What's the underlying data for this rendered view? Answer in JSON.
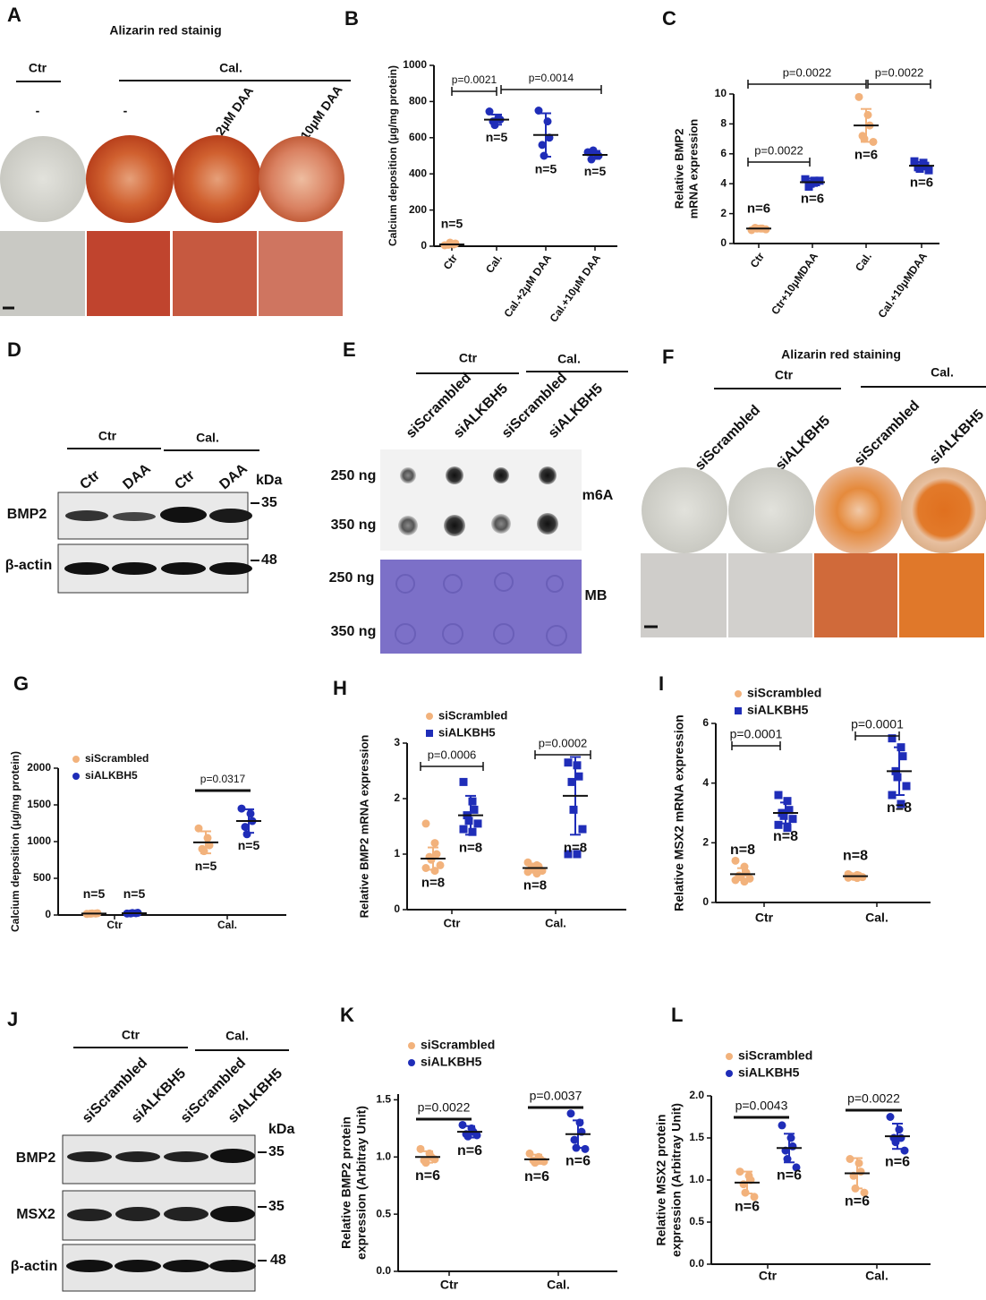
{
  "panels": {
    "A": {
      "label": "A",
      "title": "Alizarin red stainig",
      "groups": [
        "Ctr",
        "Cal."
      ],
      "lanes": [
        "-",
        "-",
        "2μM DAA",
        "10μM DAA"
      ]
    },
    "D": {
      "label": "D",
      "groups": [
        "Ctr",
        "Cal."
      ],
      "lanes": [
        "Ctr",
        "DAA",
        "Ctr",
        "DAA"
      ],
      "unit": "kDa",
      "rows": [
        "BMP2",
        "β-actin"
      ],
      "markers": [
        "35",
        "48"
      ]
    },
    "E": {
      "label": "E",
      "groups": [
        "Ctr",
        "Cal."
      ],
      "lanes": [
        "siScrambled",
        "siALKBH5",
        "siScrambled",
        "siALKBH5"
      ],
      "rows": [
        "250 ng",
        "350 ng",
        "250 ng",
        "350 ng"
      ],
      "blots": [
        "m6A",
        "MB"
      ]
    },
    "F": {
      "label": "F",
      "title": "Alizarin red staining",
      "groups": [
        "Ctr",
        "Cal."
      ],
      "lanes": [
        "siScrambled",
        "siALKBH5",
        "siScrambled",
        "siALKBH5"
      ]
    },
    "J": {
      "label": "J",
      "groups": [
        "Ctr",
        "Cal."
      ],
      "lanes": [
        "siScrambled",
        "siALKBH5",
        "siScrambled",
        "siALKBH5"
      ],
      "unit": "kDa",
      "rows": [
        "BMP2",
        "MSX2",
        "β-actin"
      ],
      "markers": [
        "35",
        "35",
        "48"
      ]
    }
  },
  "chart_data": [
    {
      "type": "dot",
      "label": "B",
      "ylabel": [
        "Calcium deposition (μg/mg protein)"
      ],
      "categories": [
        "Ctr",
        "Cal.",
        "Cal.+2μM DAA",
        "Cal.+10μM DAA"
      ],
      "ylim": [
        0,
        1000
      ],
      "yticks": [
        0,
        200,
        400,
        600,
        800,
        1000
      ],
      "series": [
        {
          "color": "#f2b27c",
          "marker": "circle",
          "values": [
            10,
            null,
            null,
            null
          ],
          "errors": [
            12,
            null,
            null,
            null
          ],
          "points": [
            [
              5,
              10,
              15,
              8,
              20
            ],
            null,
            null,
            null
          ],
          "n_labels": [
            "n=5",
            null,
            null,
            null
          ]
        },
        {
          "color": "#1f2db8",
          "marker": "circle",
          "values": [
            null,
            700,
            615,
            505
          ],
          "errors": [
            null,
            28,
            120,
            22
          ],
          "points": [
            null,
            [
              745,
              710,
              700,
              690,
              670
            ],
            [
              750,
              690,
              600,
              560,
              500
            ],
            [
              520,
              510,
              500,
              480,
              530
            ]
          ],
          "n_labels": [
            null,
            "n=5",
            "n=5",
            "n=5"
          ]
        }
      ],
      "pvalues": [
        "p=0.0021",
        "p=0.0014"
      ]
    },
    {
      "type": "dot",
      "label": "C",
      "ylabel": [
        "Relative BMP2",
        "mRNA expression"
      ],
      "categories": [
        "Ctr",
        "Ctr+10μMDAA",
        "Cal.",
        "Cal.+10μMDAA"
      ],
      "ylim": [
        0,
        10
      ],
      "yticks": [
        0,
        2,
        4,
        6,
        8,
        10
      ],
      "series": [
        {
          "color": "#f2b27c",
          "marker": "circle",
          "values": [
            1.0,
            null,
            7.9,
            null
          ],
          "errors": [
            0.1,
            null,
            1.1,
            null
          ],
          "points": [
            [
              0.9,
              1.0,
              1.0,
              1.05,
              1.0,
              0.95
            ],
            null,
            [
              9.8,
              8.6,
              7.9,
              7.2,
              7.0,
              6.8
            ],
            null
          ],
          "n_labels": [
            "n=6",
            null,
            "n=6",
            null
          ]
        },
        {
          "color": "#1f2db8",
          "marker": "square",
          "values": [
            null,
            4.1,
            null,
            5.2
          ],
          "errors": [
            null,
            0.25,
            null,
            0.25
          ],
          "points": [
            null,
            [
              4.3,
              4.2,
              4.1,
              3.8,
              4.0,
              4.2
            ],
            null,
            [
              5.5,
              5.4,
              5.2,
              5.1,
              5.0,
              4.9
            ]
          ],
          "n_labels": [
            null,
            "n=6",
            null,
            "n=6"
          ]
        }
      ],
      "pvalues": [
        "p=0.0022",
        "p=0.0022",
        "p=0.0022"
      ]
    },
    {
      "type": "dot",
      "label": "G",
      "ylabel": [
        "Calcium deposition (μg/mg protein)"
      ],
      "categories": [
        "Ctr",
        "Cal."
      ],
      "ylim": [
        0,
        2000
      ],
      "yticks": [
        0,
        500,
        1000,
        1500,
        2000
      ],
      "series": [
        {
          "name": "siScrambled",
          "color": "#f2b27c",
          "marker": "circle",
          "values": [
            20,
            990
          ],
          "errors": [
            10,
            150
          ],
          "points": [
            [
              15,
              20,
              25,
              18,
              22
            ],
            [
              1180,
              1050,
              950,
              900,
              870
            ]
          ],
          "n_labels": [
            "n=5",
            "n=5"
          ]
        },
        {
          "name": "siALKBH5",
          "color": "#1f2db8",
          "marker": "circle",
          "values": [
            25,
            1280
          ],
          "errors": [
            10,
            160
          ],
          "points": [
            [
              20,
              25,
              30,
              22,
              28
            ],
            [
              1450,
              1380,
              1280,
              1200,
              1100
            ]
          ],
          "n_labels": [
            "n=5",
            "n=5"
          ]
        }
      ],
      "pvalues": [
        "p=0.0317"
      ]
    },
    {
      "type": "dot",
      "label": "H",
      "ylabel": [
        "Relative BMP2 mRNA expression"
      ],
      "categories": [
        "Ctr",
        "Cal."
      ],
      "ylim": [
        0,
        3
      ],
      "yticks": [
        0,
        1,
        2,
        3
      ],
      "series": [
        {
          "name": "siScrambled",
          "color": "#f2b27c",
          "marker": "circle",
          "values": [
            0.92,
            0.75
          ],
          "errors": [
            0.2,
            0.08
          ],
          "points": [
            [
              1.55,
              1.2,
              1.0,
              0.95,
              0.9,
              0.8,
              0.75,
              0.7
            ],
            [
              0.85,
              0.8,
              0.78,
              0.75,
              0.72,
              0.7,
              0.68,
              0.65
            ]
          ],
          "n_labels": [
            "n=8",
            "n=8"
          ]
        },
        {
          "name": "siALKBH5",
          "color": "#1f2db8",
          "marker": "square",
          "values": [
            1.7,
            2.05
          ],
          "errors": [
            0.35,
            0.7
          ],
          "points": [
            [
              2.3,
              1.95,
              1.8,
              1.7,
              1.6,
              1.55,
              1.45,
              1.4
            ],
            [
              2.65,
              2.6,
              2.4,
              2.3,
              1.8,
              1.45,
              1.0,
              1.0
            ]
          ],
          "n_labels": [
            "n=8",
            "n=8"
          ]
        }
      ],
      "pvalues": [
        "p=0.0006",
        "p=0.0002"
      ]
    },
    {
      "type": "dot",
      "label": "I",
      "ylabel": [
        "Relative MSX2 mRNA expression"
      ],
      "categories": [
        "Ctr",
        "Cal."
      ],
      "ylim": [
        0,
        6
      ],
      "yticks": [
        0,
        2,
        4,
        6
      ],
      "series": [
        {
          "name": "siScrambled",
          "color": "#f2b27c",
          "marker": "circle",
          "values": [
            0.95,
            0.88
          ],
          "errors": [
            0.2,
            0.07
          ],
          "points": [
            [
              1.4,
              1.2,
              1.0,
              0.9,
              0.85,
              0.8,
              0.75,
              0.7
            ],
            [
              0.95,
              0.92,
              0.9,
              0.88,
              0.86,
              0.85,
              0.83,
              0.82
            ]
          ],
          "n_labels": [
            "n=8",
            "n=8"
          ]
        },
        {
          "name": "siALKBH5",
          "color": "#1f2db8",
          "marker": "square",
          "values": [
            3.0,
            4.4
          ],
          "errors": [
            0.35,
            0.8
          ],
          "points": [
            [
              3.6,
              3.4,
              3.1,
              3.0,
              2.9,
              2.8,
              2.6,
              2.5
            ],
            [
              5.5,
              5.2,
              4.9,
              4.4,
              4.2,
              3.9,
              3.6,
              3.3
            ]
          ],
          "n_labels": [
            "n=8",
            "n=8"
          ]
        }
      ],
      "pvalues": [
        "p=0.0001",
        "p=0.0001"
      ]
    },
    {
      "type": "dot",
      "label": "K",
      "ylabel": [
        "Relative BMP2 protein",
        "expression (Arbitray Unit)"
      ],
      "categories": [
        "Ctr",
        "Cal."
      ],
      "ylim": [
        0,
        1.55
      ],
      "yticks": [
        {
          "value": 0,
          "label": "0.0"
        },
        0.5,
        {
          "value": 1,
          "label": "1.0"
        },
        1.5
      ],
      "series": [
        {
          "name": "siScrambled",
          "color": "#f2b27c",
          "marker": "circle",
          "values": [
            1.0,
            0.98
          ],
          "errors": [
            0.05,
            0.04
          ],
          "points": [
            [
              1.07,
              1.03,
              1.0,
              0.97,
              0.95,
              0.98
            ],
            [
              1.03,
              1.0,
              0.98,
              0.97,
              0.95,
              0.96
            ]
          ],
          "n_labels": [
            "n=6",
            "n=6"
          ]
        },
        {
          "name": "siALKBH5",
          "color": "#1f2db8",
          "marker": "circle",
          "values": [
            1.22,
            1.2
          ],
          "errors": [
            0.05,
            0.12
          ],
          "points": [
            [
              1.28,
              1.25,
              1.22,
              1.2,
              1.18,
              1.19
            ],
            [
              1.38,
              1.3,
              1.22,
              1.15,
              1.08,
              1.07
            ]
          ],
          "n_labels": [
            "n=6",
            "n=6"
          ]
        }
      ],
      "pvalues": [
        "p=0.0022",
        "p=0.0037"
      ]
    },
    {
      "type": "dot",
      "label": "L",
      "ylabel": [
        "Relative MSX2 protein",
        "expression (Arbitray Unit)"
      ],
      "categories": [
        "Ctr",
        "Cal."
      ],
      "ylim": [
        0,
        2
      ],
      "yticks": [
        {
          "value": 0,
          "label": "0.0"
        },
        0.5,
        {
          "value": 1,
          "label": "1.0"
        },
        1.5,
        {
          "value": 2,
          "label": "2.0"
        }
      ],
      "series": [
        {
          "name": "siScrambled",
          "color": "#f2b27c",
          "marker": "circle",
          "values": [
            0.97,
            1.08
          ],
          "errors": [
            0.13,
            0.18
          ],
          "points": [
            [
              1.1,
              1.05,
              1.0,
              0.95,
              0.85,
              0.8
            ],
            [
              1.25,
              1.2,
              1.1,
              1.05,
              0.9,
              0.85
            ]
          ],
          "n_labels": [
            "n=6",
            "n=6"
          ]
        },
        {
          "name": "siALKBH5",
          "color": "#1f2db8",
          "marker": "circle",
          "values": [
            1.38,
            1.52
          ],
          "errors": [
            0.17,
            0.15
          ],
          "points": [
            [
              1.65,
              1.5,
              1.4,
              1.35,
              1.25,
              1.15
            ],
            [
              1.75,
              1.6,
              1.5,
              1.5,
              1.45,
              1.35
            ]
          ],
          "n_labels": [
            "n=6",
            "n=6"
          ]
        }
      ],
      "pvalues": [
        "p=0.0043",
        "p=0.0022"
      ]
    }
  ]
}
